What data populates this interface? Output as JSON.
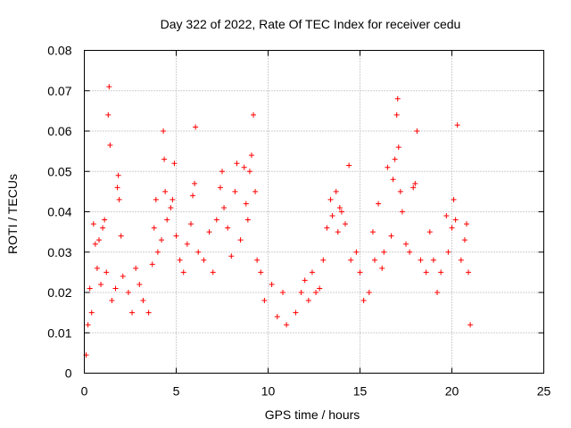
{
  "chart_data": {
    "type": "scatter",
    "title": "Day 322 of 2022, Rate Of TEC Index for receiver cedu",
    "xlabel": "GPS time / hours",
    "ylabel": "ROTI / TECUs",
    "xlim": [
      0,
      25
    ],
    "ylim": [
      0,
      0.08
    ],
    "xticks": [
      "0",
      "5",
      "10",
      "15",
      "20",
      "25"
    ],
    "yticks": [
      "0",
      "0.01",
      "0.02",
      "0.03",
      "0.04",
      "0.05",
      "0.06",
      "0.07",
      "0.08"
    ],
    "grid": true,
    "legend": "none",
    "marker": "plus",
    "series_color": "#ff0000",
    "series": [
      {
        "points": [
          [
            0.1,
            0.0045
          ],
          [
            0.2,
            0.012
          ],
          [
            0.3,
            0.021
          ],
          [
            0.4,
            0.015
          ],
          [
            0.5,
            0.037
          ],
          [
            0.6,
            0.032
          ],
          [
            0.7,
            0.026
          ],
          [
            0.8,
            0.033
          ],
          [
            0.9,
            0.022
          ],
          [
            1.0,
            0.036
          ],
          [
            1.1,
            0.038
          ],
          [
            1.2,
            0.025
          ],
          [
            1.3,
            0.064
          ],
          [
            1.35,
            0.071
          ],
          [
            1.4,
            0.0565
          ],
          [
            1.5,
            0.018
          ],
          [
            1.7,
            0.021
          ],
          [
            1.8,
            0.046
          ],
          [
            1.85,
            0.049
          ],
          [
            1.9,
            0.043
          ],
          [
            2.0,
            0.034
          ],
          [
            2.1,
            0.024
          ],
          [
            2.4,
            0.02
          ],
          [
            2.6,
            0.015
          ],
          [
            2.8,
            0.026
          ],
          [
            3.0,
            0.022
          ],
          [
            3.2,
            0.018
          ],
          [
            3.5,
            0.015
          ],
          [
            3.7,
            0.027
          ],
          [
            3.8,
            0.036
          ],
          [
            3.9,
            0.043
          ],
          [
            4.0,
            0.03
          ],
          [
            4.2,
            0.033
          ],
          [
            4.3,
            0.06
          ],
          [
            4.35,
            0.053
          ],
          [
            4.4,
            0.045
          ],
          [
            4.5,
            0.038
          ],
          [
            4.7,
            0.041
          ],
          [
            4.8,
            0.043
          ],
          [
            4.9,
            0.052
          ],
          [
            5.0,
            0.034
          ],
          [
            5.2,
            0.028
          ],
          [
            5.4,
            0.025
          ],
          [
            5.6,
            0.032
          ],
          [
            5.8,
            0.037
          ],
          [
            5.9,
            0.044
          ],
          [
            6.0,
            0.047
          ],
          [
            6.05,
            0.061
          ],
          [
            6.2,
            0.03
          ],
          [
            6.5,
            0.028
          ],
          [
            6.8,
            0.035
          ],
          [
            7.0,
            0.025
          ],
          [
            7.2,
            0.038
          ],
          [
            7.4,
            0.046
          ],
          [
            7.5,
            0.05
          ],
          [
            7.6,
            0.041
          ],
          [
            7.8,
            0.036
          ],
          [
            8.0,
            0.029
          ],
          [
            8.2,
            0.045
          ],
          [
            8.3,
            0.052
          ],
          [
            8.5,
            0.033
          ],
          [
            8.7,
            0.051
          ],
          [
            8.8,
            0.042
          ],
          [
            8.9,
            0.038
          ],
          [
            9.0,
            0.05
          ],
          [
            9.1,
            0.054
          ],
          [
            9.2,
            0.064
          ],
          [
            9.3,
            0.045
          ],
          [
            9.4,
            0.028
          ],
          [
            9.6,
            0.025
          ],
          [
            9.8,
            0.018
          ],
          [
            10.2,
            0.022
          ],
          [
            10.5,
            0.014
          ],
          [
            10.8,
            0.02
          ],
          [
            11.0,
            0.012
          ],
          [
            11.5,
            0.015
          ],
          [
            11.8,
            0.02
          ],
          [
            12.0,
            0.023
          ],
          [
            12.2,
            0.018
          ],
          [
            12.4,
            0.025
          ],
          [
            12.6,
            0.02
          ],
          [
            12.8,
            0.021
          ],
          [
            13.0,
            0.028
          ],
          [
            13.2,
            0.036
          ],
          [
            13.4,
            0.043
          ],
          [
            13.5,
            0.039
          ],
          [
            13.7,
            0.045
          ],
          [
            13.8,
            0.035
          ],
          [
            13.9,
            0.041
          ],
          [
            14.0,
            0.04
          ],
          [
            14.2,
            0.037
          ],
          [
            14.4,
            0.0515
          ],
          [
            14.5,
            0.028
          ],
          [
            14.8,
            0.03
          ],
          [
            15.0,
            0.025
          ],
          [
            15.2,
            0.018
          ],
          [
            15.5,
            0.02
          ],
          [
            15.7,
            0.035
          ],
          [
            15.8,
            0.028
          ],
          [
            16.0,
            0.042
          ],
          [
            16.2,
            0.026
          ],
          [
            16.3,
            0.03
          ],
          [
            16.5,
            0.051
          ],
          [
            16.7,
            0.034
          ],
          [
            16.8,
            0.048
          ],
          [
            16.9,
            0.053
          ],
          [
            17.0,
            0.064
          ],
          [
            17.05,
            0.068
          ],
          [
            17.1,
            0.056
          ],
          [
            17.2,
            0.045
          ],
          [
            17.3,
            0.04
          ],
          [
            17.5,
            0.032
          ],
          [
            17.7,
            0.03
          ],
          [
            17.9,
            0.046
          ],
          [
            18.0,
            0.047
          ],
          [
            18.1,
            0.06
          ],
          [
            18.3,
            0.028
          ],
          [
            18.6,
            0.025
          ],
          [
            18.8,
            0.035
          ],
          [
            19.0,
            0.028
          ],
          [
            19.2,
            0.02
          ],
          [
            19.4,
            0.025
          ],
          [
            19.7,
            0.039
          ],
          [
            19.8,
            0.03
          ],
          [
            20.0,
            0.036
          ],
          [
            20.1,
            0.043
          ],
          [
            20.2,
            0.038
          ],
          [
            20.3,
            0.0615
          ],
          [
            20.5,
            0.028
          ],
          [
            20.7,
            0.033
          ],
          [
            20.8,
            0.037
          ],
          [
            20.9,
            0.025
          ],
          [
            21.0,
            0.012
          ]
        ]
      }
    ]
  }
}
